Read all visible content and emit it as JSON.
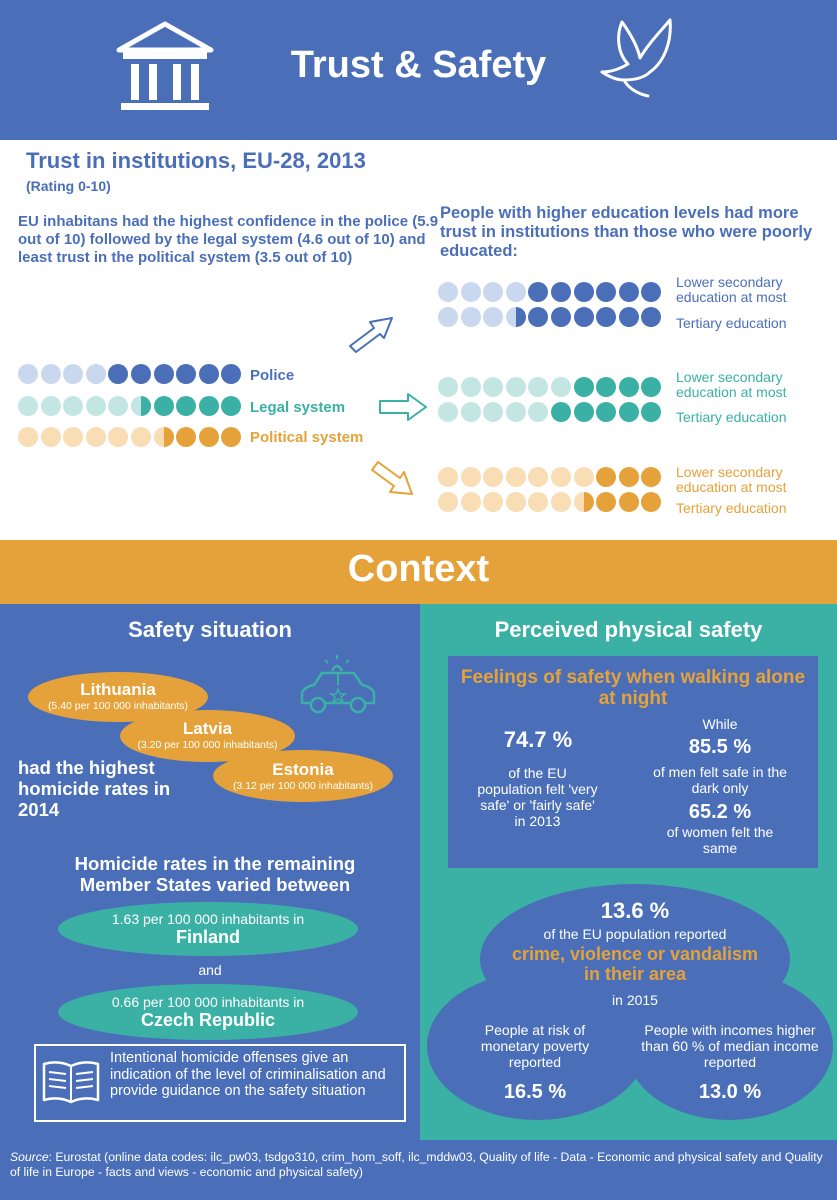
{
  "header": {
    "title": "Trust & Safety"
  },
  "trust": {
    "title": "Trust in institutions, EU-28, 2013",
    "subtitle": "(Rating 0-10)",
    "intro": "EU inhabitans had the highest confidence in the police (5.9 out of 10) followed by the legal system (4.6 out of 10) and least trust in the political system (3.5 out of 10)",
    "rows": [
      {
        "label": "Police",
        "value": 5.9,
        "color": "#4a6fb8",
        "light": "#c9d8ef"
      },
      {
        "label": "Legal system",
        "value": 4.6,
        "color": "#3bb0a5",
        "light": "#c4e6e3"
      },
      {
        "label": "Political system",
        "value": 3.5,
        "color": "#e5a23a",
        "light": "#f8ddb5"
      }
    ]
  },
  "education": {
    "intro": "People with higher education levels had more trust in institutions than those who were poorly educated:",
    "lower_label": "Lower secondary education at most",
    "tertiary_label": "Tertiary education",
    "groups": [
      {
        "color": "#4a6fb8",
        "light": "#c9d8ef",
        "lower": 6.0,
        "tertiary": 6.5
      },
      {
        "color": "#3bb0a5",
        "light": "#c4e6e3",
        "lower": 4.0,
        "tertiary": 5.0
      },
      {
        "color": "#e5a23a",
        "light": "#f8ddb5",
        "lower": 3.0,
        "tertiary": 3.5
      }
    ]
  },
  "context": {
    "title": "Context"
  },
  "safety": {
    "heading": "Safety situation",
    "countries": [
      {
        "name": "Lithuania",
        "rate": "(5.40 per 100 000 inhabitants)"
      },
      {
        "name": "Latvia",
        "rate": "(3.20 per 100 000 inhabitants)"
      },
      {
        "name": "Estonia",
        "rate": "(3.12 per 100 000 inhabitants)"
      }
    ],
    "highest_text": "had the highest homicide rates in 2014",
    "range_heading": "Homicide rates in the remaining Member States varied between",
    "low_rate_text": "1.63 per 100 000 inhabitants in",
    "low_country": "Finland",
    "and": "and",
    "lowest_rate_text": "0.66 per 100 000 inhabitants in",
    "lowest_country": "Czech Republic",
    "note": "Intentional homicide offenses give an indication of the level of criminalisation and provide guidance on the safety situation"
  },
  "perceived": {
    "heading": "Perceived physical safety",
    "box_title": "Feelings of safety when walking alone at night",
    "eu_value": "74.7 %",
    "eu_text": "of the EU population felt 'very safe' or 'fairly safe' in 2013",
    "while": "While",
    "men_value": "85.5 %",
    "men_text": "of men felt safe in the dark only",
    "women_value": "65.2 %",
    "women_text": "of women felt the same",
    "crime_value": "13.6 %",
    "crime_text1": "of the EU population reported",
    "crime_highlight": "crime, violence or vandalism in their area",
    "crime_year": "in 2015",
    "poverty_text": "People at risk of monetary poverty reported",
    "poverty_value": "16.5 %",
    "income_text": "People with incomes higher than 60 % of median income reported",
    "income_value": "13.0 %"
  },
  "source": {
    "label": "Source",
    "text": ": Eurostat (online data codes: ilc_pw03, tsdgo310, crim_hom_soff, ilc_mddw03, Quality of life - Data - Economic and physical safety and Quality of life in Europe - facts and views - economic and physical safety)"
  }
}
